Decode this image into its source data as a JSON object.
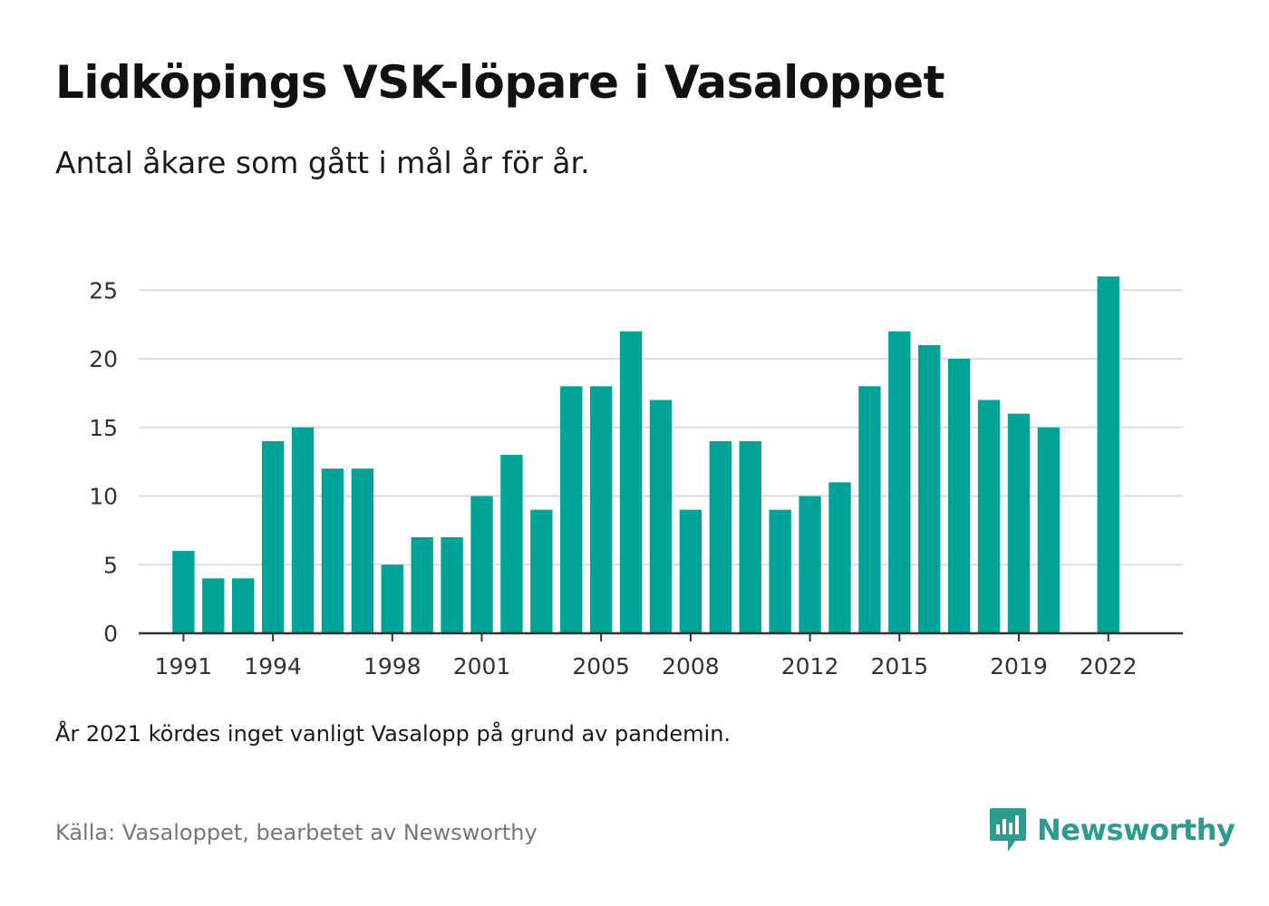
{
  "chart_data": {
    "type": "bar",
    "title": "Lidköpings VSK-löpare i Vasaloppet",
    "subtitle": "Antal åkare som gått i mål år för år.",
    "x": [
      1991,
      1992,
      1993,
      1994,
      1995,
      1996,
      1997,
      1998,
      1999,
      2000,
      2001,
      2002,
      2003,
      2004,
      2005,
      2006,
      2007,
      2008,
      2009,
      2010,
      2011,
      2012,
      2013,
      2014,
      2015,
      2016,
      2017,
      2018,
      2019,
      2020,
      2022
    ],
    "values": [
      6,
      4,
      4,
      14,
      15,
      12,
      12,
      5,
      7,
      7,
      10,
      13,
      9,
      18,
      18,
      22,
      17,
      9,
      14,
      14,
      9,
      10,
      11,
      18,
      22,
      21,
      20,
      17,
      16,
      15,
      26
    ],
    "x_tick_labels": [
      "1991",
      "1994",
      "1998",
      "2001",
      "2005",
      "2008",
      "2012",
      "2015",
      "2019",
      "2022"
    ],
    "y_ticks": [
      0,
      5,
      10,
      15,
      20,
      25
    ],
    "ylim": [
      0,
      27
    ],
    "xlim": [
      1989.5,
      2024.5
    ],
    "grid": true,
    "bar_color": "#00a398",
    "grid_color": "#dddddd",
    "axis_color": "#333333"
  },
  "note": "År 2021 kördes inget vanligt Vasalopp på grund av pandemin.",
  "source": "Källa: Vasaloppet, bearbetet av Newsworthy",
  "brand": {
    "name": "Newsworthy",
    "color": "#2b9c8f",
    "icon": "newsworthy-logo-icon"
  }
}
